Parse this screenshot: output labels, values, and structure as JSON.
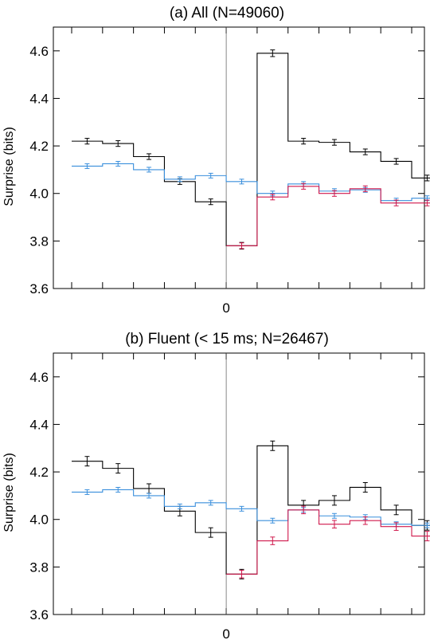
{
  "chart_data": [
    {
      "type": "line",
      "title": "(a) All (N=49060)",
      "xlabel": "",
      "ylabel": "Surprise (bits)",
      "ylim": [
        3.6,
        4.7
      ],
      "yticks": [
        3.6,
        3.8,
        4.0,
        4.2,
        4.4,
        4.6
      ],
      "yticklabels": [
        "3.6",
        "3.8",
        "4.0",
        "4.2",
        "4.4",
        "4.6"
      ],
      "xlim": [
        -5,
        6
      ],
      "xticks": [
        -5,
        -4,
        -3,
        -2,
        -1,
        0,
        1,
        2,
        3,
        4,
        5,
        6
      ],
      "xticklabels": [
        {
          "x": 0,
          "label": "0"
        }
      ],
      "vline_x": 0,
      "grid": false,
      "series": [
        {
          "color": "#000000",
          "x": [
            -5,
            -4,
            -3,
            -2,
            -1,
            0,
            1,
            2,
            3,
            4,
            5,
            6
          ],
          "values": [
            4.22,
            4.21,
            4.155,
            4.05,
            3.965,
            3.78,
            4.59,
            4.22,
            4.215,
            4.175,
            4.135,
            4.065
          ],
          "err": [
            0.012,
            0.012,
            0.012,
            0.012,
            0.012,
            0.014,
            0.014,
            0.012,
            0.012,
            0.012,
            0.012,
            0.012
          ]
        },
        {
          "color": "#3a8fdc",
          "x": [
            -5,
            -4,
            -3,
            -2,
            -1,
            0,
            1,
            2,
            3,
            4,
            5,
            6
          ],
          "values": [
            4.115,
            4.125,
            4.1,
            4.06,
            4.075,
            4.05,
            4.0,
            4.04,
            4.01,
            4.015,
            3.97,
            3.98
          ],
          "err": [
            0.01,
            0.01,
            0.01,
            0.01,
            0.01,
            0.01,
            0.01,
            0.01,
            0.01,
            0.01,
            0.01,
            0.01
          ]
        },
        {
          "color": "#d0184c",
          "x": [
            0,
            1,
            2,
            3,
            4,
            5,
            6
          ],
          "values": [
            3.78,
            3.985,
            4.03,
            4.0,
            4.02,
            3.96,
            3.96
          ],
          "err": [
            0.012,
            0.012,
            0.012,
            0.012,
            0.012,
            0.012,
            0.012
          ]
        }
      ]
    },
    {
      "type": "line",
      "title": "(b) Fluent (< 15 ms; N=26467)",
      "xlabel": "",
      "ylabel": "Surprise (bits)",
      "ylim": [
        3.6,
        4.7
      ],
      "yticks": [
        3.6,
        3.8,
        4.0,
        4.2,
        4.4,
        4.6
      ],
      "yticklabels": [
        "3.6",
        "3.8",
        "4.0",
        "4.2",
        "4.4",
        "4.6"
      ],
      "xlim": [
        -5,
        6
      ],
      "xticks": [
        -5,
        -4,
        -3,
        -2,
        -1,
        0,
        1,
        2,
        3,
        4,
        5,
        6
      ],
      "xticklabels": [
        {
          "x": 0,
          "label": "0"
        }
      ],
      "vline_x": 0,
      "grid": false,
      "series": [
        {
          "color": "#000000",
          "x": [
            -5,
            -4,
            -3,
            -2,
            -1,
            0,
            1,
            2,
            3,
            4,
            5,
            6
          ],
          "values": [
            4.245,
            4.215,
            4.13,
            4.035,
            3.945,
            3.77,
            4.31,
            4.06,
            4.08,
            4.135,
            4.04,
            3.975
          ],
          "err": [
            0.02,
            0.02,
            0.02,
            0.02,
            0.02,
            0.02,
            0.02,
            0.02,
            0.02,
            0.02,
            0.02,
            0.02
          ]
        },
        {
          "color": "#3a8fdc",
          "x": [
            -5,
            -4,
            -3,
            -2,
            -1,
            0,
            1,
            2,
            3,
            4,
            5,
            6
          ],
          "values": [
            4.115,
            4.125,
            4.1,
            4.055,
            4.07,
            4.045,
            3.995,
            4.04,
            4.015,
            4.01,
            3.98,
            3.975
          ],
          "err": [
            0.01,
            0.01,
            0.01,
            0.01,
            0.01,
            0.01,
            0.01,
            0.01,
            0.01,
            0.01,
            0.01,
            0.01
          ]
        },
        {
          "color": "#d0184c",
          "x": [
            0,
            1,
            2,
            3,
            4,
            5,
            6
          ],
          "values": [
            3.77,
            3.91,
            4.04,
            3.98,
            3.995,
            3.97,
            3.93
          ],
          "err": [
            0.016,
            0.016,
            0.016,
            0.016,
            0.016,
            0.016,
            0.02
          ]
        }
      ]
    }
  ]
}
